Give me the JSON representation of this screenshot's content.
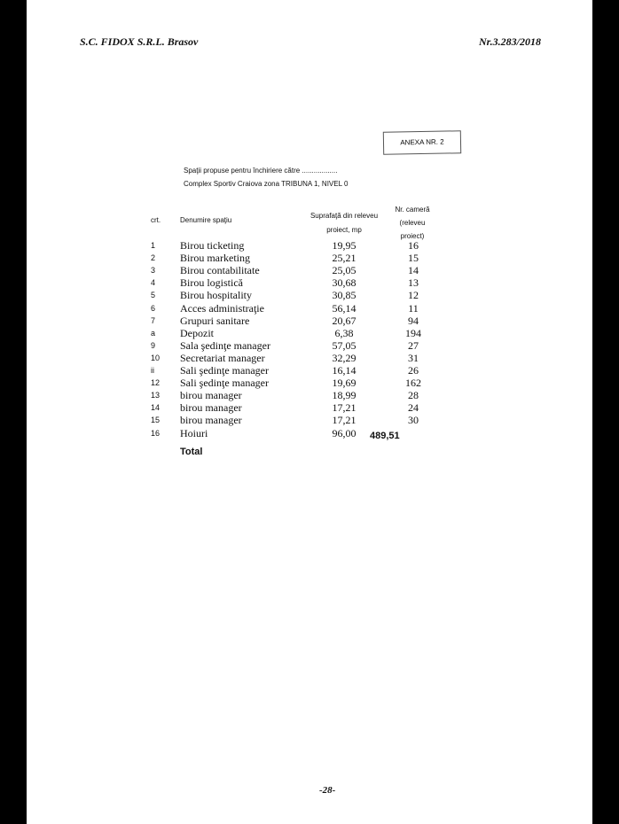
{
  "header": {
    "company": "S.C. FIDOX S.R.L. Brasov",
    "number": "Nr.3.283/2018"
  },
  "annex": "ANEXA NR. 2",
  "intro": [
    "Spaţii propuse pentru închiriere către ..................",
    "Complex Sportiv Craiova zona TRIBUNA 1, NIVEL 0"
  ],
  "table": {
    "columns": [
      "crt.",
      "Denumire spaţiu",
      "Suprafaţă din releveu proiect, mp",
      "Nr. cameră (releveu proiect)"
    ],
    "rows": [
      [
        "1",
        "Birou ticketing",
        "19,95",
        "16"
      ],
      [
        "2",
        "Birou marketing",
        "25,21",
        "15"
      ],
      [
        "3",
        "Birou contabilitate",
        "25,05",
        "14"
      ],
      [
        "4",
        "Birou logistică",
        "30,68",
        "13"
      ],
      [
        "5",
        "Birou hospitality",
        "30,85",
        "12"
      ],
      [
        "6",
        "Acces administraţie",
        "56,14",
        "11"
      ],
      [
        "7",
        "Grupuri sanitare",
        "20,67",
        "94"
      ],
      [
        "a",
        "Depozit",
        "6,38",
        "194"
      ],
      [
        "9",
        "Sala şedinţe manager",
        "57,05",
        "27"
      ],
      [
        "10",
        "Secretariat manager",
        "32,29",
        "31"
      ],
      [
        "ii",
        "Sali şedinţe manager",
        "16,14",
        "26"
      ],
      [
        "12",
        "Sali şedinţe manager",
        "19,69",
        "162"
      ],
      [
        "13",
        "birou manager",
        "18,99",
        "28"
      ],
      [
        "14",
        "birou manager",
        "17,21",
        "24"
      ],
      [
        "15",
        "birou manager",
        "17,21",
        "30"
      ],
      [
        "16",
        "Hoiuri",
        "96,00"
      ]
    ],
    "total": {
      "label": "Total",
      "value": "489,51"
    }
  },
  "footer": {
    "page": "-28-"
  }
}
